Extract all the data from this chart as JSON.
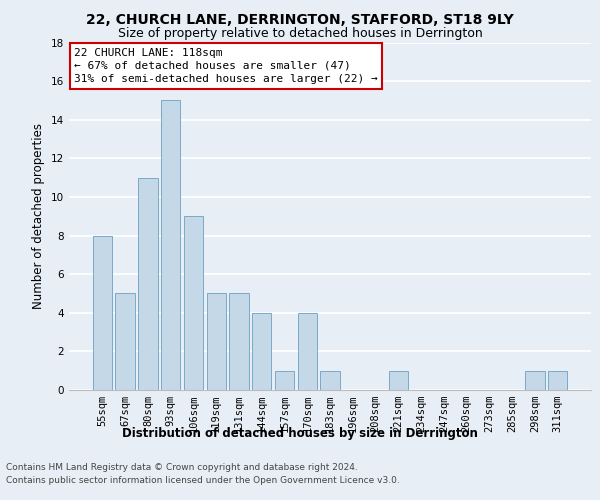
{
  "title1": "22, CHURCH LANE, DERRINGTON, STAFFORD, ST18 9LY",
  "title2": "Size of property relative to detached houses in Derrington",
  "xlabel": "Distribution of detached houses by size in Derrington",
  "ylabel": "Number of detached properties",
  "categories": [
    "55sqm",
    "67sqm",
    "80sqm",
    "93sqm",
    "106sqm",
    "119sqm",
    "131sqm",
    "144sqm",
    "157sqm",
    "170sqm",
    "183sqm",
    "196sqm",
    "208sqm",
    "221sqm",
    "234sqm",
    "247sqm",
    "260sqm",
    "273sqm",
    "285sqm",
    "298sqm",
    "311sqm"
  ],
  "values": [
    8,
    5,
    11,
    15,
    9,
    5,
    5,
    4,
    1,
    4,
    1,
    0,
    0,
    1,
    0,
    0,
    0,
    0,
    0,
    1,
    1
  ],
  "bar_color": "#c5d8e8",
  "bar_edgecolor": "#7aaac8",
  "annotation_title": "22 CHURCH LANE: 118sqm",
  "annotation_line1": "← 67% of detached houses are smaller (47)",
  "annotation_line2": "31% of semi-detached houses are larger (22) →",
  "annotation_box_facecolor": "#ffffff",
  "annotation_box_edgecolor": "#cc0000",
  "ylim": [
    0,
    18
  ],
  "yticks": [
    0,
    2,
    4,
    6,
    8,
    10,
    12,
    14,
    16,
    18
  ],
  "footer1": "Contains HM Land Registry data © Crown copyright and database right 2024.",
  "footer2": "Contains public sector information licensed under the Open Government Licence v3.0.",
  "bg_color": "#e8eef5",
  "plot_bg_color": "#e8eef5",
  "grid_color": "#ffffff",
  "title1_fontsize": 10,
  "title2_fontsize": 9,
  "xlabel_fontsize": 8.5,
  "ylabel_fontsize": 8.5,
  "annotation_fontsize": 8,
  "footer_fontsize": 6.5,
  "tick_fontsize": 7.5
}
